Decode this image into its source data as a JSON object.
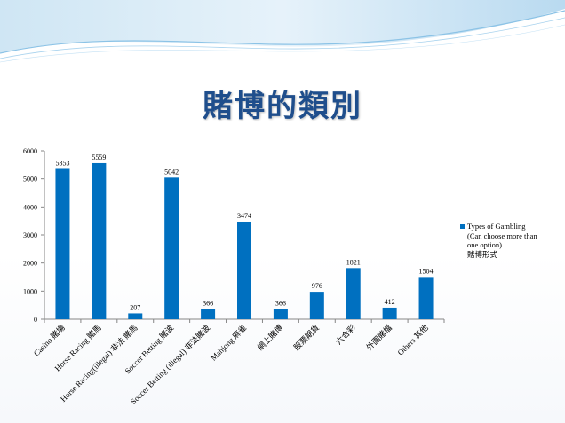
{
  "title": "賭博的類別",
  "chart_data": {
    "type": "bar",
    "categories": [
      "Casino 賭場",
      "Horse Racing 賭馬",
      "Horse Racing(illegal) 非法 賭馬",
      "Soccer Betting 賭波",
      "Soccer Betting (illegal) 非法賭波",
      "Mahjong 麻雀",
      "網上賭博",
      "股票期貨",
      "六合彩",
      "外圍賭檔",
      "Others 其他"
    ],
    "series": [
      {
        "name": "Types of Gambling (Can choose more than one option) 賭博形式",
        "values": [
          5353,
          5559,
          207,
          5042,
          366,
          3474,
          366,
          976,
          1821,
          412,
          1504
        ]
      }
    ],
    "ylim": [
      0,
      6000
    ],
    "yticks": [
      0,
      1000,
      2000,
      3000,
      4000,
      5000,
      6000
    ],
    "grid": false,
    "legend_position": "right",
    "bar_color": "#0070c0"
  },
  "legend": {
    "label": "Types of Gambling\n(Can choose more than\none option)\n賭博形式"
  }
}
